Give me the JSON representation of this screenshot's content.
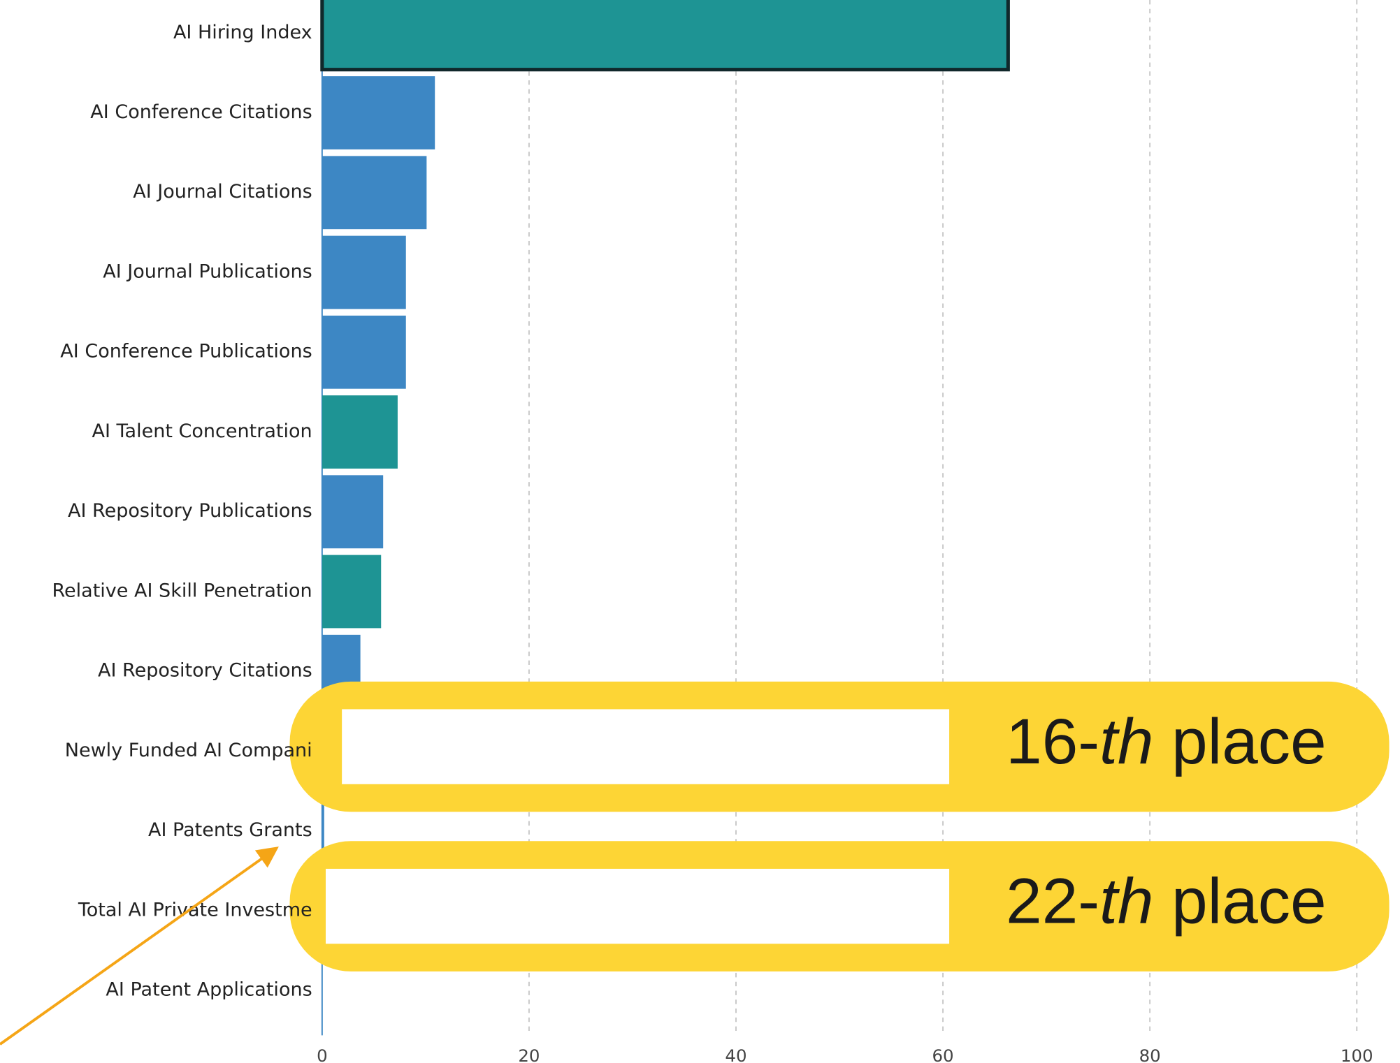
{
  "chart_data": {
    "type": "barh",
    "categories": [
      "AI Hiring Index",
      "AI Conference Citations",
      "AI Journal Citations",
      "AI Journal Publications",
      "AI Conference Publications",
      "AI Talent Concentration",
      "AI Repository Publications",
      "Relative AI Skill Penetration",
      "AI Repository Citations",
      "Newly Funded AI Compani",
      "AI Patents Grants",
      "Total AI Private Investme",
      "AI Patent Applications"
    ],
    "values": [
      66.3,
      10.9,
      10.1,
      8.1,
      8.1,
      7.3,
      5.9,
      5.7,
      3.7,
      1.7,
      0.2,
      0.1,
      0
    ],
    "colors": [
      "#1e9494",
      "#3d87c4",
      "#3d87c4",
      "#3d87c4",
      "#3d87c4",
      "#1e9494",
      "#3d87c4",
      "#1e9494",
      "#3d87c4",
      "#1e9494",
      "#3d87c4",
      "#3d87c4",
      "#3d87c4"
    ],
    "edgecolors": [
      "#10282b",
      null,
      null,
      null,
      null,
      null,
      null,
      null,
      null,
      null,
      null,
      null,
      null
    ],
    "xlim": [
      0,
      100
    ],
    "xticks": [
      0,
      20,
      40,
      60,
      80,
      100
    ],
    "grid": true,
    "annotations": [
      [
        "16-",
        "th",
        " place"
      ],
      [
        "22-",
        "th",
        " place"
      ]
    ],
    "annotation_color": "#fdd535",
    "arrow_color": "#f5a516"
  }
}
